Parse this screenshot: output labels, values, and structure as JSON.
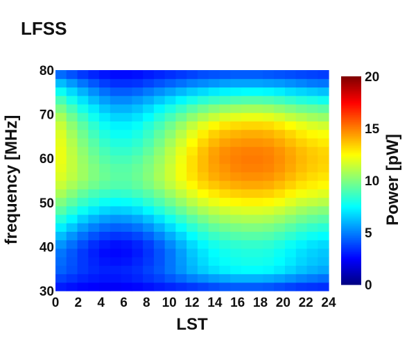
{
  "chart_data": {
    "type": "heatmap",
    "title": "LFSS",
    "xlabel": "LST",
    "ylabel": "frequency [MHz]",
    "colorbar_label": "Power [pW]",
    "colormap": "jet",
    "xlim": [
      0,
      24
    ],
    "ylim": [
      30,
      80
    ],
    "clim": [
      0,
      20
    ],
    "x_ticks": [
      "0",
      "2",
      "4",
      "6",
      "8",
      "10",
      "12",
      "14",
      "16",
      "18",
      "20",
      "22",
      "24"
    ],
    "y_ticks": [
      "30",
      "40",
      "50",
      "60",
      "70",
      "80"
    ],
    "colorbar_ticks": [
      "0",
      "5",
      "10",
      "15",
      "20"
    ],
    "x": [
      0,
      1,
      2,
      3,
      4,
      5,
      6,
      7,
      8,
      9,
      10,
      11,
      12,
      13,
      14,
      15,
      16,
      17,
      18,
      19,
      20,
      21,
      22,
      23,
      24
    ],
    "y": [
      30,
      32,
      34,
      36,
      38,
      40,
      42,
      44,
      46,
      48,
      50,
      52,
      54,
      56,
      58,
      60,
      62,
      64,
      66,
      68,
      70,
      72,
      74,
      76,
      78,
      80
    ],
    "z": [
      [
        3.0,
        2.8,
        2.6,
        2.5,
        2.4,
        2.4,
        2.5,
        2.6,
        2.8,
        3.0,
        3.2,
        3.4,
        3.6,
        3.8,
        4.0,
        4.2,
        4.3,
        4.3,
        4.3,
        4.2,
        4.0,
        3.8,
        3.6,
        3.5,
        3.4
      ],
      [
        3.8,
        3.5,
        3.2,
        3.0,
        2.9,
        2.9,
        3.0,
        3.2,
        3.5,
        3.8,
        4.2,
        4.6,
        5.0,
        5.3,
        5.6,
        5.8,
        6.0,
        6.0,
        6.0,
        5.9,
        5.7,
        5.4,
        5.1,
        4.9,
        4.7
      ],
      [
        4.4,
        4.0,
        3.6,
        3.3,
        3.1,
        3.1,
        3.2,
        3.4,
        3.8,
        4.2,
        4.8,
        5.4,
        6.0,
        6.5,
        6.9,
        7.2,
        7.4,
        7.5,
        7.5,
        7.4,
        7.1,
        6.7,
        6.3,
        6.0,
        5.8
      ],
      [
        4.6,
        4.1,
        3.6,
        3.2,
        2.9,
        2.8,
        2.9,
        3.2,
        3.6,
        4.1,
        4.8,
        5.5,
        6.2,
        6.8,
        7.3,
        7.6,
        7.8,
        7.9,
        7.9,
        7.8,
        7.5,
        7.1,
        6.7,
        6.4,
        6.2
      ],
      [
        4.8,
        4.2,
        3.6,
        3.1,
        2.7,
        2.6,
        2.7,
        3.0,
        3.5,
        4.1,
        4.8,
        5.6,
        6.4,
        7.0,
        7.5,
        7.8,
        8.0,
        8.1,
        8.1,
        8.0,
        7.7,
        7.3,
        6.9,
        6.6,
        6.4
      ],
      [
        5.4,
        4.7,
        4.0,
        3.4,
        3.0,
        2.8,
        2.9,
        3.2,
        3.7,
        4.4,
        5.2,
        6.0,
        6.8,
        7.4,
        7.9,
        8.2,
        8.4,
        8.5,
        8.5,
        8.4,
        8.1,
        7.7,
        7.3,
        7.0,
        6.8
      ],
      [
        6.2,
        5.4,
        4.7,
        4.1,
        3.7,
        3.5,
        3.6,
        3.9,
        4.4,
        5.1,
        5.9,
        6.7,
        7.5,
        8.1,
        8.6,
        8.9,
        9.1,
        9.2,
        9.2,
        9.1,
        8.8,
        8.4,
        8.0,
        7.7,
        7.5
      ],
      [
        7.2,
        6.4,
        5.6,
        5.0,
        4.6,
        4.4,
        4.5,
        4.8,
        5.3,
        6.0,
        6.8,
        7.6,
        8.3,
        8.9,
        9.4,
        9.7,
        9.9,
        10.0,
        10.0,
        9.9,
        9.6,
        9.2,
        8.8,
        8.5,
        8.3
      ],
      [
        8.2,
        7.4,
        6.6,
        6.0,
        5.6,
        5.4,
        5.5,
        5.8,
        6.3,
        7.0,
        7.8,
        8.5,
        9.2,
        9.8,
        10.3,
        10.6,
        10.8,
        10.9,
        10.9,
        10.8,
        10.5,
        10.1,
        9.7,
        9.4,
        9.2
      ],
      [
        9.2,
        8.4,
        7.7,
        7.1,
        6.7,
        6.5,
        6.6,
        6.9,
        7.4,
        8.1,
        8.8,
        9.5,
        10.2,
        10.8,
        11.2,
        11.5,
        11.7,
        11.8,
        11.8,
        11.7,
        11.4,
        11.0,
        10.6,
        10.3,
        10.1
      ],
      [
        10.0,
        9.3,
        8.6,
        8.1,
        7.7,
        7.5,
        7.6,
        7.9,
        8.4,
        9.0,
        9.7,
        10.4,
        11.1,
        11.7,
        12.1,
        12.4,
        12.6,
        12.7,
        12.7,
        12.6,
        12.3,
        11.9,
        11.5,
        11.3,
        11.1
      ],
      [
        10.8,
        10.1,
        9.4,
        8.9,
        8.6,
        8.4,
        8.5,
        8.8,
        9.2,
        9.8,
        10.5,
        11.2,
        11.9,
        12.5,
        12.9,
        13.2,
        13.4,
        13.5,
        13.5,
        13.4,
        13.1,
        12.7,
        12.3,
        12.1,
        11.9
      ],
      [
        11.4,
        10.8,
        10.2,
        9.7,
        9.3,
        9.1,
        9.1,
        9.4,
        9.9,
        10.5,
        11.2,
        11.9,
        12.6,
        13.2,
        13.6,
        13.9,
        14.1,
        14.2,
        14.2,
        14.1,
        13.8,
        13.4,
        13.0,
        12.8,
        12.6
      ],
      [
        11.8,
        11.2,
        10.6,
        10.0,
        9.6,
        9.3,
        9.3,
        9.6,
        10.1,
        10.8,
        11.5,
        12.3,
        13.0,
        13.6,
        14.1,
        14.4,
        14.6,
        14.7,
        14.7,
        14.6,
        14.3,
        13.9,
        13.5,
        13.2,
        13.0
      ],
      [
        12.0,
        11.3,
        10.6,
        10.0,
        9.5,
        9.2,
        9.2,
        9.5,
        10.0,
        10.7,
        11.5,
        12.3,
        13.1,
        13.8,
        14.3,
        14.6,
        14.9,
        15.0,
        15.0,
        14.9,
        14.6,
        14.2,
        13.8,
        13.5,
        13.3
      ],
      [
        12.1,
        11.3,
        10.5,
        9.8,
        9.2,
        8.9,
        8.9,
        9.2,
        9.8,
        10.5,
        11.3,
        12.2,
        13.1,
        13.8,
        14.4,
        14.8,
        15.0,
        15.1,
        15.1,
        15.0,
        14.7,
        14.3,
        13.9,
        13.6,
        13.4
      ],
      [
        12.1,
        11.2,
        10.3,
        9.5,
        8.9,
        8.5,
        8.5,
        8.8,
        9.4,
        10.2,
        11.1,
        12.0,
        12.9,
        13.7,
        14.3,
        14.7,
        14.9,
        15.0,
        15.0,
        14.9,
        14.6,
        14.2,
        13.8,
        13.5,
        13.3
      ],
      [
        12.0,
        11.0,
        10.0,
        9.2,
        8.5,
        8.1,
        8.1,
        8.4,
        9.0,
        9.8,
        10.7,
        11.6,
        12.5,
        13.3,
        13.9,
        14.3,
        14.5,
        14.6,
        14.6,
        14.5,
        14.2,
        13.8,
        13.4,
        13.1,
        12.9
      ],
      [
        11.8,
        10.7,
        9.7,
        8.8,
        8.1,
        7.7,
        7.7,
        8.0,
        8.6,
        9.4,
        10.2,
        11.1,
        12.0,
        12.8,
        13.4,
        13.8,
        14.0,
        14.1,
        14.1,
        14.0,
        13.7,
        13.3,
        12.9,
        12.6,
        12.4
      ],
      [
        11.4,
        10.3,
        9.3,
        8.4,
        7.7,
        7.3,
        7.3,
        7.6,
        8.2,
        8.9,
        9.7,
        10.5,
        11.3,
        12.0,
        12.6,
        13.0,
        13.2,
        13.3,
        13.3,
        13.2,
        12.9,
        12.5,
        12.1,
        11.8,
        11.6
      ],
      [
        10.8,
        9.7,
        8.7,
        7.8,
        7.1,
        6.7,
        6.7,
        7.0,
        7.5,
        8.2,
        8.9,
        9.6,
        10.3,
        10.9,
        11.4,
        11.8,
        12.0,
        12.1,
        12.1,
        12.0,
        11.7,
        11.3,
        11.0,
        10.7,
        10.5
      ],
      [
        9.9,
        8.9,
        7.9,
        7.1,
        6.4,
        6.0,
        6.0,
        6.3,
        6.8,
        7.4,
        8.0,
        8.6,
        9.2,
        9.7,
        10.1,
        10.4,
        10.6,
        10.7,
        10.7,
        10.6,
        10.3,
        10.0,
        9.7,
        9.5,
        9.3
      ],
      [
        8.9,
        7.9,
        7.0,
        6.2,
        5.6,
        5.2,
        5.2,
        5.5,
        5.9,
        6.4,
        6.9,
        7.4,
        7.9,
        8.3,
        8.6,
        8.8,
        9.0,
        9.1,
        9.1,
        9.0,
        8.8,
        8.5,
        8.2,
        8.0,
        7.8
      ],
      [
        7.7,
        6.8,
        6.0,
        5.3,
        4.7,
        4.3,
        4.3,
        4.5,
        4.9,
        5.3,
        5.7,
        6.1,
        6.5,
        6.8,
        7.1,
        7.3,
        7.4,
        7.5,
        7.5,
        7.4,
        7.2,
        6.9,
        6.7,
        6.5,
        6.3
      ],
      [
        6.2,
        5.5,
        4.8,
        4.2,
        3.7,
        3.4,
        3.4,
        3.5,
        3.8,
        4.1,
        4.4,
        4.7,
        5.0,
        5.2,
        5.4,
        5.6,
        5.7,
        5.7,
        5.7,
        5.6,
        5.5,
        5.3,
        5.1,
        4.9,
        4.8
      ],
      [
        4.6,
        4.1,
        3.6,
        3.2,
        2.9,
        2.7,
        2.7,
        2.8,
        3.0,
        3.2,
        3.4,
        3.6,
        3.8,
        4.0,
        4.1,
        4.2,
        4.3,
        4.3,
        4.3,
        4.2,
        4.1,
        4.0,
        3.9,
        3.8,
        3.7
      ]
    ]
  }
}
